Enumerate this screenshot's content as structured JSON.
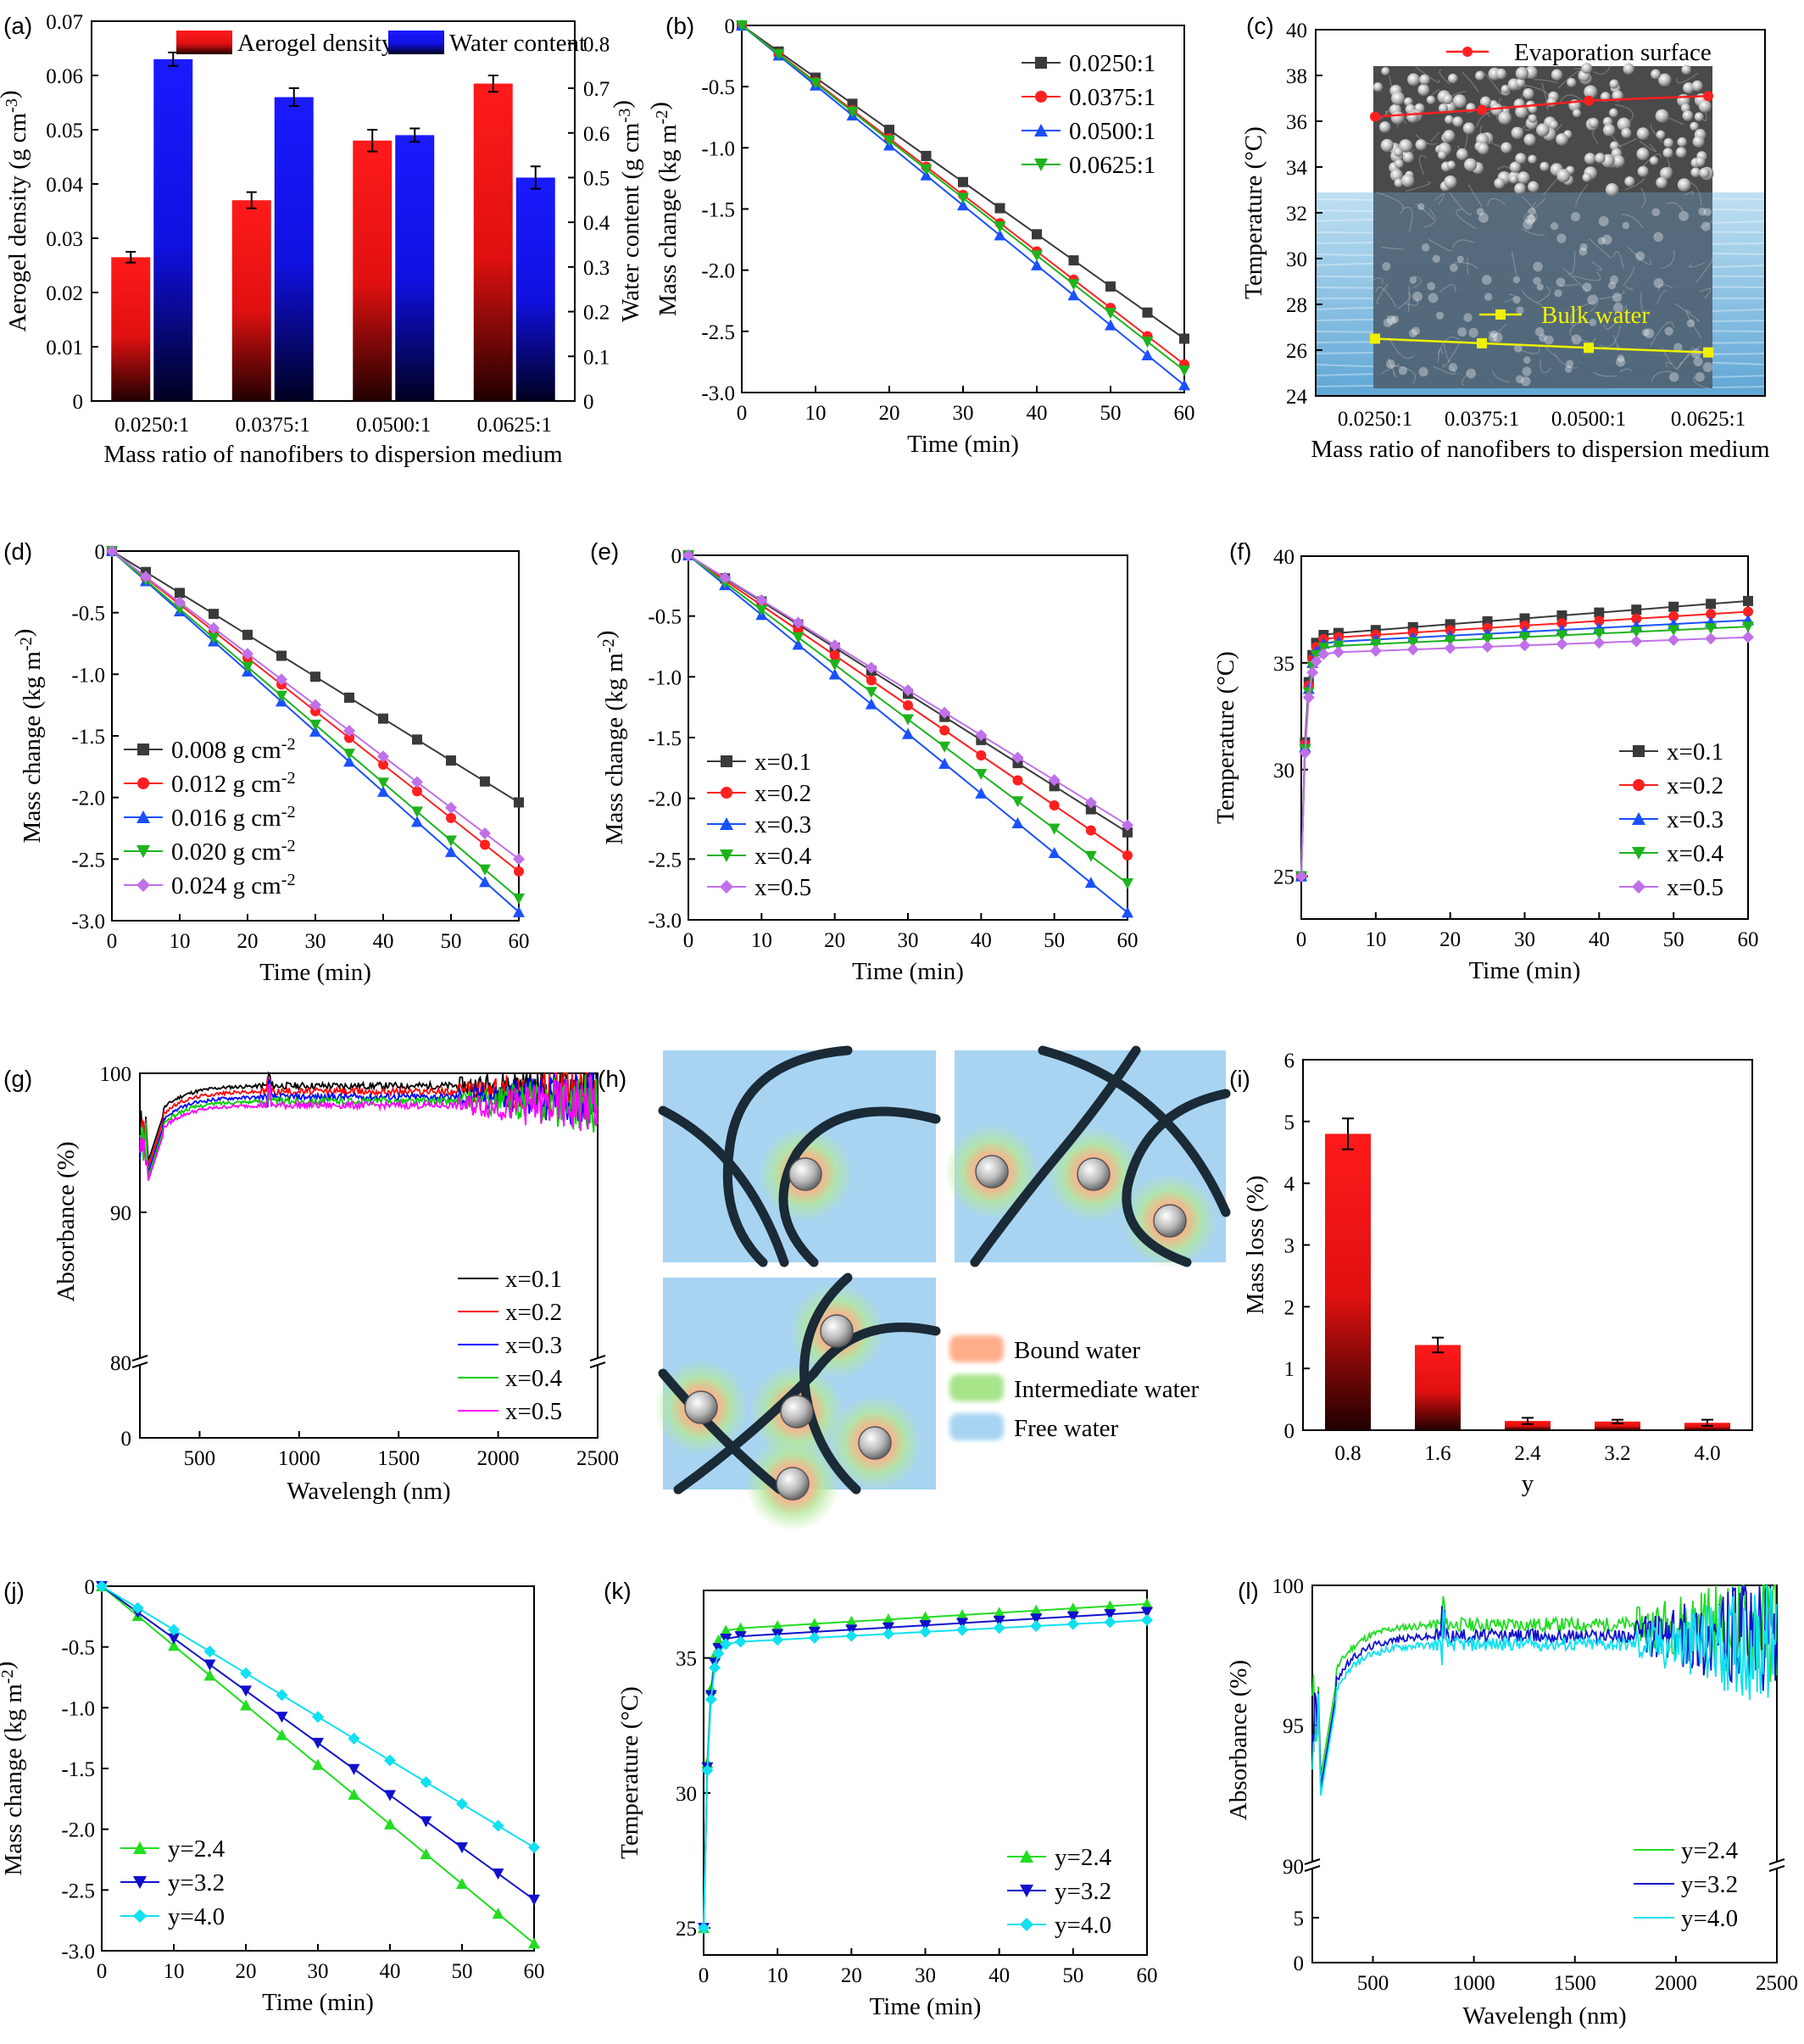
{
  "panel_labels": [
    "(a)",
    "(b)",
    "(c)",
    "(d)",
    "(e)",
    "(f)",
    "(g)",
    "(h)",
    "(i)",
    "(j)",
    "(k)",
    "(l)"
  ],
  "colors": {
    "black": "#3a3a3a",
    "red": "#ff2020",
    "blue": "#1a50ff",
    "green": "#1db31d",
    "violet": "#c070e8",
    "bright_green": "#22dd22",
    "navy": "#1010cc",
    "cyan": "#10e0f0",
    "bar_red": "#ff1a1a",
    "bar_blue": "#1a1aff",
    "water": "#a8d4f2"
  },
  "legend_h": [
    "Bound water",
    "Intermediate water",
    "Free water"
  ],
  "chart_data": [
    {
      "panel": "a",
      "type": "bar",
      "xlabel": "Mass ratio of nanofibers to dispersion medium",
      "ylabel": "Aerogel density (g cm-3)",
      "ylabel_right": "Water content (g cm-3)",
      "categories": [
        "0.0250:1",
        "0.0375:1",
        "0.0500:1",
        "0.0625:1"
      ],
      "ylim": [
        0,
        0.07
      ],
      "ylim_right": [
        0,
        0.85
      ],
      "yticks": [
        "0",
        "0.01",
        "0.02",
        "0.03",
        "0.04",
        "0.05",
        "0.06",
        "0.07"
      ],
      "yticks_right": [
        "0",
        "0.1",
        "0.2",
        "0.3",
        "0.4",
        "0.5",
        "0.6",
        "0.7",
        "0.8"
      ],
      "series": [
        {
          "name": "Aerogel density",
          "axis": "left",
          "color": "#ff1a1a",
          "values": [
            0.0265,
            0.037,
            0.048,
            0.0585
          ],
          "errors": [
            0.001,
            0.0015,
            0.002,
            0.0015
          ]
        },
        {
          "name": "Water content",
          "axis": "right",
          "color": "#1a1aff",
          "values": [
            0.765,
            0.68,
            0.595,
            0.5
          ],
          "errors": [
            0.015,
            0.02,
            0.015,
            0.025
          ]
        }
      ]
    },
    {
      "panel": "b",
      "type": "line",
      "xlabel": "Time (min)",
      "ylabel": "Mass change (kg m-2)",
      "xlim": [
        0,
        60
      ],
      "ylim": [
        -3.0,
        0
      ],
      "xticks": [
        0,
        10,
        20,
        30,
        40,
        50,
        60
      ],
      "yticks": [
        0,
        -0.5,
        -1.0,
        -1.5,
        -2.0,
        -2.5,
        -3.0
      ],
      "ytick_labels": [
        "0",
        "-0.5",
        "-1.0",
        "-1.5",
        "-2.0",
        "-2.5",
        "-3.0"
      ],
      "x": [
        0,
        5,
        10,
        15,
        20,
        25,
        30,
        35,
        40,
        45,
        50,
        55,
        60
      ],
      "legend": "top-right",
      "series": [
        {
          "name": "0.0250:1",
          "marker": "square",
          "color": "#3a3a3a",
          "end": -2.56
        },
        {
          "name": "0.0375:1",
          "marker": "circle",
          "color": "#ff2020",
          "end": -2.77
        },
        {
          "name": "0.0500:1",
          "marker": "triangle-up",
          "color": "#1a50ff",
          "end": -2.94
        },
        {
          "name": "0.0625:1",
          "marker": "triangle-down",
          "color": "#1db31d",
          "end": -2.82
        }
      ]
    },
    {
      "panel": "c",
      "type": "line",
      "xlabel": "Mass ratio of nanofibers to dispersion medium",
      "ylabel": "Temperature (°C)",
      "categories": [
        "0.0250:1",
        "0.0375:1",
        "0.0500:1",
        "0.0625:1"
      ],
      "ylim": [
        24,
        40
      ],
      "yticks": [
        24,
        26,
        28,
        30,
        32,
        34,
        36,
        38,
        40
      ],
      "series": [
        {
          "name": "Evaporation surface",
          "marker": "circle",
          "color": "#ff2020",
          "values": [
            36.2,
            36.5,
            36.9,
            37.1
          ]
        },
        {
          "name": "Bulk water",
          "marker": "square",
          "color": "#f0f000",
          "values": [
            26.5,
            26.3,
            26.1,
            25.9
          ]
        }
      ]
    },
    {
      "panel": "d",
      "type": "line",
      "xlabel": "Time (min)",
      "ylabel": "Mass change (kg m-2)",
      "xlim": [
        0,
        60
      ],
      "ylim": [
        -3.0,
        0
      ],
      "xticks": [
        0,
        10,
        20,
        30,
        40,
        50,
        60
      ],
      "yticks": [
        0,
        -0.5,
        -1.0,
        -1.5,
        -2.0,
        -2.5,
        -3.0
      ],
      "ytick_labels": [
        "0",
        "-0.5",
        "-1.0",
        "-1.5",
        "-2.0",
        "-2.5",
        "-3.0"
      ],
      "x": [
        0,
        5,
        10,
        15,
        20,
        25,
        30,
        35,
        40,
        45,
        50,
        55,
        60
      ],
      "legend": "bottom-left",
      "series": [
        {
          "name": "0.008 g cm-2",
          "marker": "square",
          "color": "#3a3a3a",
          "end": -2.04
        },
        {
          "name": "0.012 g cm-2",
          "marker": "circle",
          "color": "#ff2020",
          "end": -2.6
        },
        {
          "name": "0.016 g cm-2",
          "marker": "triangle-up",
          "color": "#1a50ff",
          "end": -2.93
        },
        {
          "name": "0.020 g cm-2",
          "marker": "triangle-down",
          "color": "#1db31d",
          "end": -2.82
        },
        {
          "name": "0.024 g cm-2",
          "marker": "diamond",
          "color": "#c070e8",
          "end": -2.5
        }
      ]
    },
    {
      "panel": "e",
      "type": "line",
      "xlabel": "Time (min)",
      "ylabel": "Mass change (kg m-2)",
      "xlim": [
        0,
        60
      ],
      "ylim": [
        -3.0,
        0
      ],
      "xticks": [
        0,
        10,
        20,
        30,
        40,
        50,
        60
      ],
      "yticks": [
        0,
        -0.5,
        -1.0,
        -1.5,
        -2.0,
        -2.5,
        -3.0
      ],
      "ytick_labels": [
        "0",
        "-0.5",
        "-1.0",
        "-1.5",
        "-2.0",
        "-2.5",
        "-3.0"
      ],
      "x": [
        0,
        5,
        10,
        15,
        20,
        25,
        30,
        35,
        40,
        45,
        50,
        55,
        60
      ],
      "legend": "bottom-left",
      "series": [
        {
          "name": "x=0.1",
          "marker": "square",
          "color": "#3a3a3a",
          "end": -2.28
        },
        {
          "name": "x=0.2",
          "marker": "circle",
          "color": "#ff2020",
          "end": -2.47
        },
        {
          "name": "x=0.3",
          "marker": "triangle-up",
          "color": "#1a50ff",
          "end": -2.94
        },
        {
          "name": "x=0.4",
          "marker": "triangle-down",
          "color": "#1db31d",
          "end": -2.7
        },
        {
          "name": "x=0.5",
          "marker": "diamond",
          "color": "#c070e8",
          "end": -2.22
        }
      ]
    },
    {
      "panel": "f",
      "type": "line",
      "xlabel": "Time (min)",
      "ylabel": "Temperature (°C)",
      "xlim": [
        0,
        60
      ],
      "ylim": [
        23,
        40
      ],
      "xticks": [
        0,
        10,
        20,
        30,
        40,
        50,
        60
      ],
      "yticks": [
        25,
        30,
        35,
        40
      ],
      "x": [
        0,
        0.5,
        1,
        1.5,
        2,
        3,
        5,
        10,
        15,
        20,
        25,
        30,
        35,
        40,
        45,
        50,
        55,
        60
      ],
      "legend": "right",
      "series": [
        {
          "name": "x=0.1",
          "marker": "square",
          "color": "#3a3a3a",
          "plateau": 36.4,
          "end": 37.9
        },
        {
          "name": "x=0.2",
          "marker": "circle",
          "color": "#ff2020",
          "plateau": 36.2,
          "end": 37.4
        },
        {
          "name": "x=0.3",
          "marker": "triangle-up",
          "color": "#1a50ff",
          "plateau": 36.0,
          "end": 37.0
        },
        {
          "name": "x=0.4",
          "marker": "triangle-down",
          "color": "#1db31d",
          "plateau": 35.8,
          "end": 36.7
        },
        {
          "name": "x=0.5",
          "marker": "diamond",
          "color": "#c070e8",
          "plateau": 35.5,
          "end": 36.2
        }
      ]
    },
    {
      "panel": "g",
      "type": "line",
      "xlabel": "Wavelengh (nm)",
      "ylabel": "Absorbance (%)",
      "xlim": [
        200,
        2500
      ],
      "xticks": [
        500,
        1000,
        1500,
        2000,
        2500
      ],
      "yticks_labels": [
        "0",
        "80",
        "90",
        "100"
      ],
      "axis_break": true,
      "legend": "bottom-right",
      "series": [
        {
          "name": "x=0.1",
          "color": "#000000",
          "plateau": 99.1
        },
        {
          "name": "x=0.2",
          "color": "#ff0000",
          "plateau": 98.7
        },
        {
          "name": "x=0.3",
          "color": "#0000ff",
          "plateau": 98.3
        },
        {
          "name": "x=0.4",
          "color": "#00cc00",
          "plateau": 98.0
        },
        {
          "name": "x=0.5",
          "color": "#ff00ff",
          "plateau": 97.7
        }
      ]
    },
    {
      "panel": "i",
      "type": "bar",
      "xlabel": "y",
      "ylabel": "Mass loss (%)",
      "categories": [
        "0.8",
        "1.6",
        "2.4",
        "3.2",
        "4.0"
      ],
      "ylim": [
        0,
        6
      ],
      "yticks": [
        0,
        1,
        2,
        3,
        4,
        5,
        6
      ],
      "values": [
        4.8,
        1.38,
        0.15,
        0.14,
        0.12
      ],
      "errors": [
        0.25,
        0.12,
        0.05,
        0.03,
        0.05
      ]
    },
    {
      "panel": "j",
      "type": "line",
      "xlabel": "Time (min)",
      "ylabel": "Mass change (kg m-2)",
      "xlim": [
        0,
        60
      ],
      "ylim": [
        -3.0,
        0
      ],
      "xticks": [
        0,
        10,
        20,
        30,
        40,
        50,
        60
      ],
      "yticks": [
        0,
        -0.5,
        -1.0,
        -1.5,
        -2.0,
        -2.5,
        -3.0
      ],
      "ytick_labels": [
        "0",
        "-0.5",
        "-1.0",
        "-1.5",
        "-2.0",
        "-2.5",
        "-3.0"
      ],
      "x": [
        0,
        5,
        10,
        15,
        20,
        25,
        30,
        35,
        40,
        45,
        50,
        55,
        60
      ],
      "legend": "bottom-left",
      "series": [
        {
          "name": "y=2.4",
          "marker": "triangle-up",
          "color": "#22dd22",
          "end": -2.94
        },
        {
          "name": "y=3.2",
          "marker": "triangle-down",
          "color": "#1010cc",
          "end": -2.58
        },
        {
          "name": "y=4.0",
          "marker": "diamond",
          "color": "#10e0f0",
          "end": -2.15
        }
      ]
    },
    {
      "panel": "k",
      "type": "line",
      "xlabel": "Time (min)",
      "ylabel": "Temperature (°C)",
      "xlim": [
        0,
        60
      ],
      "ylim": [
        24,
        37.5
      ],
      "xticks": [
        0,
        10,
        20,
        30,
        40,
        50,
        60
      ],
      "yticks": [
        25,
        30,
        35
      ],
      "x": [
        0,
        0.5,
        1,
        1.5,
        2,
        3,
        5,
        10,
        15,
        20,
        25,
        30,
        35,
        40,
        45,
        50,
        55,
        60
      ],
      "legend": "bottom-right",
      "series": [
        {
          "name": "y=2.4",
          "marker": "triangle-up",
          "color": "#22dd22",
          "plateau": 36.1,
          "end": 37.0
        },
        {
          "name": "y=3.2",
          "marker": "triangle-down",
          "color": "#1010cc",
          "plateau": 35.8,
          "end": 36.7
        },
        {
          "name": "y=4.0",
          "marker": "diamond",
          "color": "#10e0f0",
          "plateau": 35.6,
          "end": 36.4
        }
      ]
    },
    {
      "panel": "l",
      "type": "line",
      "xlabel": "Wavelengh (nm)",
      "ylabel": "Absorbance (%)",
      "xlim": [
        200,
        2500
      ],
      "xticks": [
        500,
        1000,
        1500,
        2000,
        2500
      ],
      "yticks_labels": [
        "0",
        "5",
        "90",
        "95",
        "100"
      ],
      "axis_break": true,
      "legend": "bottom-right",
      "series": [
        {
          "name": "y=2.4",
          "color": "#22dd22",
          "plateau": 98.6
        },
        {
          "name": "y=3.2",
          "color": "#1010cc",
          "plateau": 98.2
        },
        {
          "name": "y=4.0",
          "color": "#10e0f0",
          "plateau": 97.9
        }
      ]
    }
  ]
}
